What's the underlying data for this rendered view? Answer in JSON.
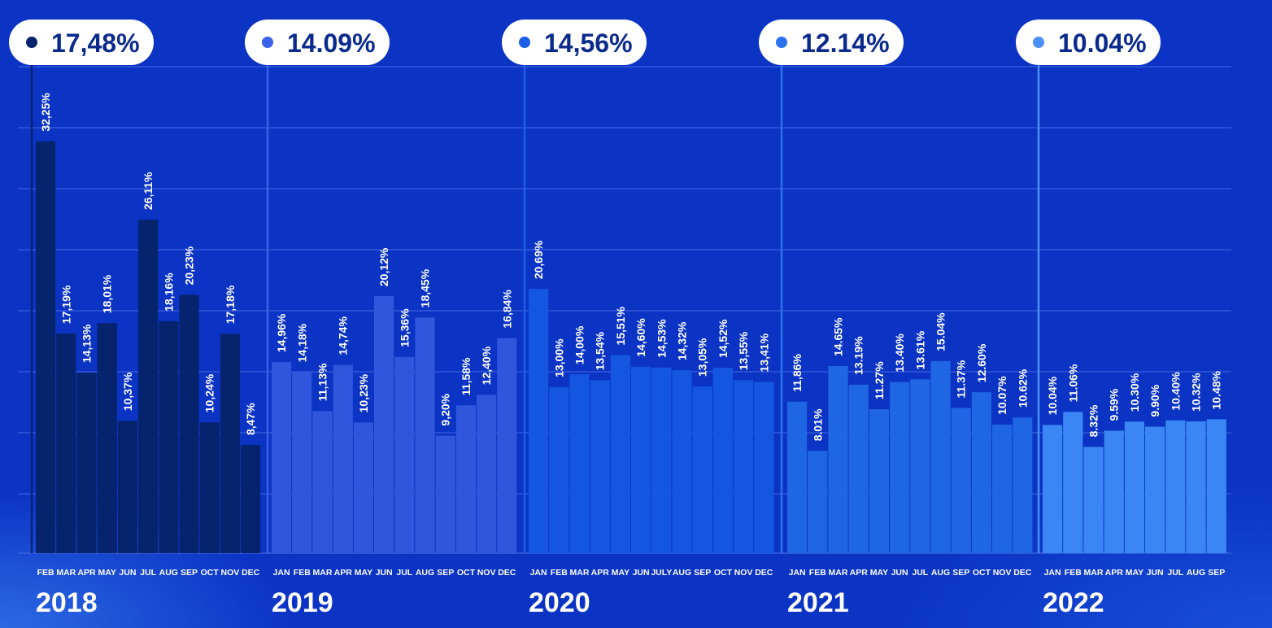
{
  "chart_data": {
    "type": "bar",
    "title": "",
    "xlabel": "",
    "ylabel": "",
    "ylim": [
      0,
      34
    ],
    "grid": true,
    "groups": [
      {
        "year": "2018",
        "average": "17,48%",
        "color": "#06246e",
        "dot_color": "#06246e",
        "months": [
          "FEB",
          "MAR",
          "APR",
          "MAY",
          "JUN",
          "JUL",
          "AUG",
          "SEP",
          "OCT",
          "NOV",
          "DEC"
        ],
        "values": [
          32.25,
          17.19,
          14.13,
          18.01,
          10.37,
          26.11,
          18.16,
          20.23,
          10.24,
          17.18,
          8.47
        ],
        "labels": [
          "32,25%",
          "17,19%",
          "14,13%",
          "18,01%",
          "10,37%",
          "26,11%",
          "18,16%",
          "20,23%",
          "10,24%",
          "17,18%",
          "8,47%"
        ]
      },
      {
        "year": "2019",
        "average": "14.09%",
        "color": "#2f56dd",
        "dot_color": "#3a62e8",
        "months": [
          "JAN",
          "FEB",
          "MAR",
          "APR",
          "MAY",
          "JUN",
          "JUL",
          "AUG",
          "SEP",
          "OCT",
          "NOV",
          "DEC"
        ],
        "values": [
          14.96,
          14.18,
          11.13,
          14.74,
          10.23,
          20.12,
          15.36,
          18.45,
          9.2,
          11.58,
          12.4,
          16.84
        ],
        "labels": [
          "14,96%",
          "14,18%",
          "11,13%",
          "14,74%",
          "10,23%",
          "20,12%",
          "15,36%",
          "18,45%",
          "9,20%",
          "11,58%",
          "12,40%",
          "16,84%"
        ]
      },
      {
        "year": "2020",
        "average": "14,56%",
        "color": "#1456df",
        "dot_color": "#1a5ee8",
        "months": [
          "JAN",
          "FEB",
          "MAR",
          "APR",
          "MAY",
          "JUN",
          "JULY",
          "AUG",
          "SEP",
          "OCT",
          "NOV",
          "DEC"
        ],
        "values": [
          20.69,
          13.0,
          14.0,
          13.54,
          15.51,
          14.6,
          14.53,
          14.32,
          13.05,
          14.52,
          13.55,
          13.41
        ],
        "labels": [
          "20,69%",
          "13,00%",
          "14,00%",
          "13,54%",
          "15,51%",
          "14,60%",
          "14,53%",
          "14,32%",
          "13,05%",
          "14,52%",
          "13,55%",
          "13,41%"
        ]
      },
      {
        "year": "2021",
        "average": "12.14%",
        "color": "#1f66e4",
        "dot_color": "#2a72ee",
        "months": [
          "JAN",
          "FEB",
          "MAR",
          "APR",
          "MAY",
          "JUN",
          "JUL",
          "AUG",
          "SEP",
          "OCT",
          "NOV",
          "DEC"
        ],
        "values": [
          11.86,
          8.01,
          14.65,
          13.19,
          11.27,
          13.4,
          13.61,
          15.04,
          11.37,
          12.6,
          10.07,
          10.62
        ],
        "labels": [
          "11,86%",
          "8.01%",
          "14.65%",
          "13.19%",
          "11.27%",
          "13.40%",
          "13.61%",
          "15.04%",
          "11.37%",
          "12.60%",
          "10.07%",
          "10.62%"
        ]
      },
      {
        "year": "2022",
        "average": "10.04%",
        "color": "#3a86f4",
        "dot_color": "#4a90f6",
        "months": [
          "JAN",
          "FEB",
          "MAR",
          "APR",
          "MAY",
          "JUN",
          "JUL",
          "AUG",
          "SEP"
        ],
        "values": [
          10.04,
          11.06,
          8.32,
          9.59,
          10.3,
          9.9,
          10.4,
          10.32,
          10.48
        ],
        "labels": [
          "10.04%",
          "11.06%",
          "8.32%",
          "9.59%",
          "10.30%",
          "9.90%",
          "10.40%",
          "10.32%",
          "10.48%"
        ]
      }
    ]
  },
  "colors": {
    "background": "#0b33c4",
    "gridline": "#3a5fe0",
    "pill_bg": "#ffffff",
    "pill_text": "#0a2a8c",
    "text": "#ffffff"
  }
}
